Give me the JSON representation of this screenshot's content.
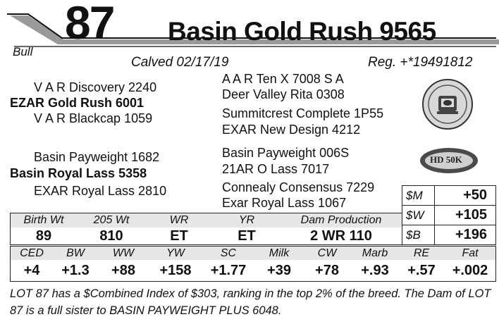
{
  "lot": {
    "number": "87",
    "name": "Basin Gold Rush 9565",
    "sex": "Bull"
  },
  "calved": "Calved 02/17/19",
  "registration": "Reg. +*19491812",
  "pedigree": {
    "sire_sire": "V A R Discovery 2240",
    "sire": "EZAR Gold Rush 6001",
    "sire_dam": "V A R Blackcap 1059",
    "dam_sire": "Basin Payweight 1682",
    "dam": "Basin Royal Lass 5358",
    "dam_dam": "EXAR Royal Lass 2810",
    "gg": [
      "A A R Ten X 7008 S A",
      "Deer Valley Rita 0308",
      "Summitcrest Complete 1P55",
      "EXAR New Design 4212",
      "Basin Payweight 006S",
      "21AR O Lass 7017",
      "Connealy Consensus 7229",
      "Exar Royal Lass 1067"
    ]
  },
  "badges": {
    "hd_label": "HD 50K"
  },
  "dollar_values": [
    {
      "label": "$M",
      "value": "+50"
    },
    {
      "label": "$W",
      "value": "+105"
    },
    {
      "label": "$B",
      "value": "+196"
    }
  ],
  "performance": {
    "headers": [
      "Birth Wt",
      "205 Wt",
      "WR",
      "YR",
      "Dam Production"
    ],
    "values": [
      "89",
      "810",
      "ET",
      "ET",
      "2 WR 110"
    ]
  },
  "epds": {
    "headers": [
      "CED",
      "BW",
      "WW",
      "YW",
      "SC",
      "Milk",
      "CW",
      "Marb",
      "RE",
      "Fat"
    ],
    "values": [
      "+4",
      "+1.3",
      "+88",
      "+158",
      "+1.77",
      "+39",
      "+78",
      "+.93",
      "+.57",
      "+.002"
    ]
  },
  "comments": "LOT 87 has a $Combined Index of $303, ranking in the top 2% of the breed. The Dam of LOT 87 is a full sister to BASIN PAYWEIGHT PLUS 6048.",
  "colors": {
    "banner_gray": "#9a9a9a",
    "ink": "#111111"
  }
}
